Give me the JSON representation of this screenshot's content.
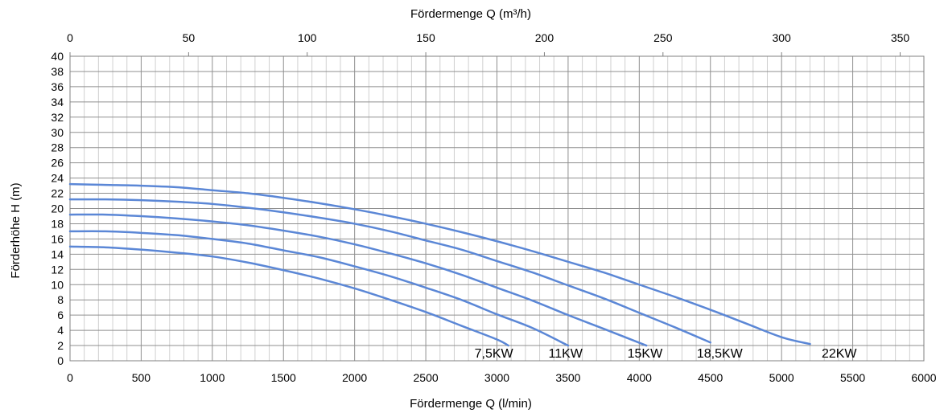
{
  "chart_data": {
    "type": "line",
    "xlabel": "Fördermenge Q (l/min)",
    "x2label": "Fördermenge Q (m³/h)",
    "ylabel": "Förderhöhe H  (m)",
    "xlim": [
      0,
      6000
    ],
    "x2lim": [
      0,
      360
    ],
    "ylim": [
      0,
      40
    ],
    "x_ticks": [
      0,
      500,
      1000,
      1500,
      2000,
      2500,
      3000,
      3500,
      4000,
      4500,
      5000,
      5500,
      6000
    ],
    "x2_ticks": [
      0,
      50,
      100,
      150,
      200,
      250,
      300,
      350
    ],
    "y_ticks": [
      0,
      2,
      4,
      6,
      8,
      10,
      12,
      14,
      16,
      18,
      20,
      22,
      24,
      26,
      28,
      30,
      32,
      34,
      36,
      38,
      40
    ],
    "grid": true,
    "line_color": "#5b87d6",
    "series": [
      {
        "name": "7,5KW",
        "x": [
          0,
          250,
          500,
          750,
          1000,
          1250,
          1500,
          1750,
          2000,
          2250,
          2500,
          2750,
          3000,
          3080
        ],
        "y": [
          15,
          14.9,
          14.6,
          14.2,
          13.7,
          12.9,
          11.9,
          10.8,
          9.5,
          8.0,
          6.4,
          4.6,
          2.8,
          2.0
        ]
      },
      {
        "name": "11KW",
        "x": [
          0,
          250,
          500,
          750,
          1000,
          1250,
          1500,
          1750,
          2000,
          2250,
          2500,
          2750,
          3000,
          3250,
          3500
        ],
        "y": [
          17,
          17.0,
          16.8,
          16.5,
          16.0,
          15.4,
          14.5,
          13.6,
          12.4,
          11.1,
          9.6,
          8.0,
          6.1,
          4.3,
          2.0
        ]
      },
      {
        "name": "15KW",
        "x": [
          0,
          250,
          500,
          750,
          1000,
          1250,
          1500,
          1750,
          2000,
          2250,
          2500,
          2750,
          3000,
          3250,
          3500,
          3750,
          4050
        ],
        "y": [
          19.2,
          19.2,
          19.0,
          18.7,
          18.3,
          17.8,
          17.1,
          16.3,
          15.3,
          14.1,
          12.8,
          11.3,
          9.6,
          7.9,
          6.0,
          4.2,
          2.0
        ]
      },
      {
        "name": "18,5KW",
        "x": [
          0,
          250,
          500,
          750,
          1000,
          1250,
          1500,
          1750,
          2000,
          2250,
          2500,
          2750,
          3000,
          3250,
          3500,
          3750,
          4000,
          4250,
          4500
        ],
        "y": [
          21.2,
          21.2,
          21.1,
          20.9,
          20.6,
          20.1,
          19.5,
          18.8,
          18.0,
          17.0,
          15.8,
          14.6,
          13.1,
          11.6,
          9.9,
          8.2,
          6.3,
          4.4,
          2.4
        ]
      },
      {
        "name": "22KW",
        "x": [
          0,
          250,
          500,
          750,
          1000,
          1250,
          1500,
          1750,
          2000,
          2250,
          2500,
          2750,
          3000,
          3250,
          3500,
          3750,
          4000,
          4250,
          4500,
          4750,
          5000,
          5200
        ],
        "y": [
          23.2,
          23.1,
          23.0,
          22.8,
          22.4,
          22.0,
          21.4,
          20.7,
          19.9,
          19.0,
          18.0,
          16.9,
          15.7,
          14.4,
          13.0,
          11.6,
          10.0,
          8.4,
          6.7,
          4.9,
          3.1,
          2.2
        ]
      }
    ]
  }
}
